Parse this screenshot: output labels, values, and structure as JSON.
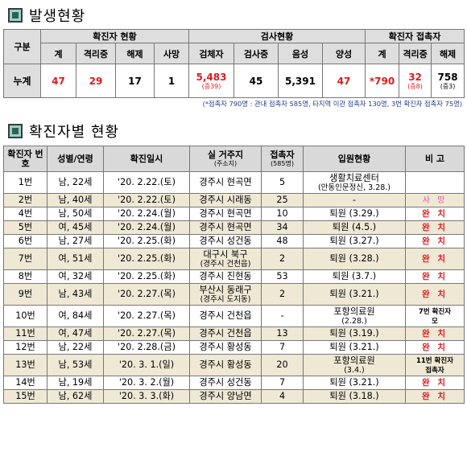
{
  "section1": {
    "title": "발생현황"
  },
  "section2": {
    "title": "확진자별 현황"
  },
  "stats": {
    "row_label_header": "구분",
    "groups": {
      "confirmed": "확진자 현황",
      "tests": "검사현황",
      "contacts": "확진자 접촉자"
    },
    "sub_headers": [
      "계",
      "격리중",
      "해제",
      "사망",
      "검체자",
      "검사중",
      "음성",
      "양성",
      "계",
      "격리중",
      "해제"
    ],
    "row_label": "누계",
    "values": {
      "total": "47",
      "isolated": "29",
      "released": "17",
      "deaths": "1",
      "specimens": "5,483",
      "specimens_sub": "(증39)",
      "testing": "45",
      "negative": "5,391",
      "positive": "47",
      "contact_total": "*790",
      "contact_isolated": "32",
      "contact_isolated_sub": "(증8)",
      "contact_released": "758",
      "contact_released_sub": "(증3)"
    },
    "colors": {
      "red": "#e01b1b",
      "header_bg": "#dedede"
    }
  },
  "note": "(*접촉자 790명 : 관내 접촉자 585명, 타지역 이관 접촉자 130명, 3번 확진자 접촉자 75명)",
  "cases_table": {
    "headers": {
      "no": "확진자 번호",
      "gender_age": "성별/연령",
      "date": "확진일시",
      "address": "실 거주지",
      "address_sub": "(주소지)",
      "contacts": "접촉자",
      "contacts_sub": "(585명)",
      "hospital": "입원현황",
      "remarks": "비 고"
    },
    "rows": [
      {
        "no": "1번",
        "ga": "남, 22세",
        "date": "'20. 2.22.(토)",
        "addr": "경주시 현곡면",
        "addr2": "",
        "contacts": "5",
        "hosp": "생활치료센터",
        "hosp2": "(안동인문정신, 3.28.)",
        "remark": "",
        "remark2": "",
        "remark_style": ""
      },
      {
        "no": "2번",
        "ga": "남, 40세",
        "date": "'20. 2.22.(토)",
        "addr": "경주시 시래동",
        "addr2": "",
        "contacts": "25",
        "hosp": "-",
        "hosp2": "",
        "remark": "사 망",
        "remark2": "",
        "remark_style": "pink"
      },
      {
        "no": "4번",
        "ga": "남, 50세",
        "date": "'20. 2.24.(월)",
        "addr": "경주시 현곡면",
        "addr2": "",
        "contacts": "10",
        "hosp": "퇴원 (3.29.)",
        "hosp2": "",
        "remark": "완 치",
        "remark2": "",
        "remark_style": "red"
      },
      {
        "no": "5번",
        "ga": "여, 45세",
        "date": "'20. 2.24.(월)",
        "addr": "경주시 현곡면",
        "addr2": "",
        "contacts": "34",
        "hosp": "퇴원 (4.5.)",
        "hosp2": "",
        "remark": "완 치",
        "remark2": "",
        "remark_style": "red"
      },
      {
        "no": "6번",
        "ga": "남, 27세",
        "date": "'20. 2.25.(화)",
        "addr": "경주시 성건동",
        "addr2": "",
        "contacts": "48",
        "hosp": "퇴원 (3.27.)",
        "hosp2": "",
        "remark": "완 치",
        "remark2": "",
        "remark_style": "red"
      },
      {
        "no": "7번",
        "ga": "여, 51세",
        "date": "'20. 2.25.(화)",
        "addr": "대구시 북구",
        "addr2": "(경주시 건천읍)",
        "contacts": "2",
        "hosp": "퇴원 (3.28.)",
        "hosp2": "",
        "remark": "완 치",
        "remark2": "",
        "remark_style": "red"
      },
      {
        "no": "8번",
        "ga": "여, 32세",
        "date": "'20. 2.25.(화)",
        "addr": "경주시 진현동",
        "addr2": "",
        "contacts": "53",
        "hosp": "퇴원 (3.7.)",
        "hosp2": "",
        "remark": "완 치",
        "remark2": "",
        "remark_style": "red"
      },
      {
        "no": "9번",
        "ga": "남, 43세",
        "date": "'20. 2.27.(목)",
        "addr": "부산시 동래구",
        "addr2": "(경주시 도지동)",
        "contacts": "2",
        "hosp": "퇴원 (3.21.)",
        "hosp2": "",
        "remark": "완 치",
        "remark2": "",
        "remark_style": "red"
      },
      {
        "no": "10번",
        "ga": "여, 84세",
        "date": "'20. 2.27.(목)",
        "addr": "경주시 건천읍",
        "addr2": "",
        "contacts": "-",
        "hosp": "포항의료원",
        "hosp2": "(2.28.)",
        "remark": "7번 확진자",
        "remark2": "모",
        "remark_style": "black"
      },
      {
        "no": "11번",
        "ga": "여, 47세",
        "date": "'20. 2.27.(목)",
        "addr": "경주시 건천읍",
        "addr2": "",
        "contacts": "13",
        "hosp": "퇴원 (3.19.)",
        "hosp2": "",
        "remark": "완 치",
        "remark2": "",
        "remark_style": "red"
      },
      {
        "no": "12번",
        "ga": "남, 22세",
        "date": "'20. 2.28.(금)",
        "addr": "경주시 황성동",
        "addr2": "",
        "contacts": "7",
        "hosp": "퇴원 (3.21.)",
        "hosp2": "",
        "remark": "완 치",
        "remark2": "",
        "remark_style": "red"
      },
      {
        "no": "13번",
        "ga": "남, 53세",
        "date": "'20. 3. 1.(일)",
        "addr": "경주시 황성동",
        "addr2": "",
        "contacts": "20",
        "hosp": "포항의료원",
        "hosp2": "(3.4.)",
        "remark": "11번 확진자",
        "remark2": "접촉자",
        "remark_style": "black"
      },
      {
        "no": "14번",
        "ga": "남, 19세",
        "date": "'20. 3. 2.(월)",
        "addr": "경주시 성건동",
        "addr2": "",
        "contacts": "7",
        "hosp": "퇴원 (3.21.)",
        "hosp2": "",
        "remark": "완 치",
        "remark2": "",
        "remark_style": "red"
      },
      {
        "no": "15번",
        "ga": "남, 62세",
        "date": "'20. 3. 3.(화)",
        "addr": "경주시 양남면",
        "addr2": "",
        "contacts": "4",
        "hosp": "퇴원 (3.18.)",
        "hosp2": "",
        "remark": "완 치",
        "remark2": "",
        "remark_style": "red"
      }
    ]
  }
}
